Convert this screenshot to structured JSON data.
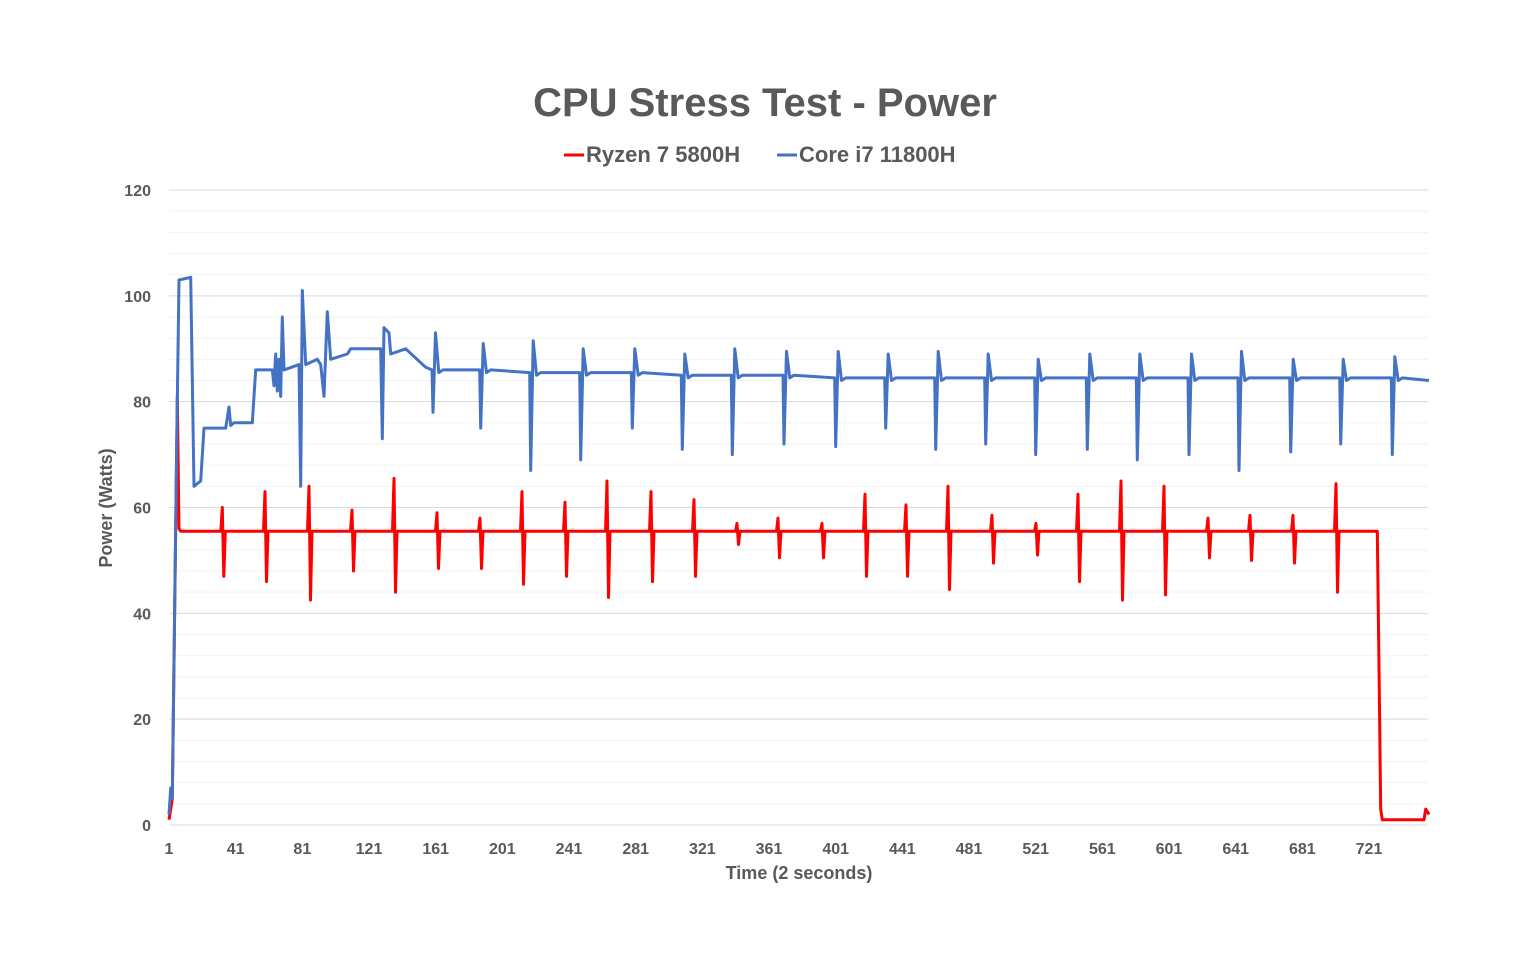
{
  "chart_data": {
    "type": "line",
    "title": "CPU Stress Test - Power",
    "xlabel": "Time (2 seconds)",
    "ylabel": "Power (Watts)",
    "xlim": [
      1,
      757
    ],
    "ylim": [
      0,
      120
    ],
    "x_ticks": [
      1,
      41,
      81,
      121,
      161,
      201,
      241,
      281,
      321,
      361,
      401,
      441,
      481,
      521,
      561,
      601,
      641,
      681,
      721
    ],
    "y_ticks": [
      0,
      20,
      40,
      60,
      80,
      100,
      120
    ],
    "grid": true,
    "legend_position": "top",
    "series": [
      {
        "name": "Ryzen 7 5800H",
        "color": "#ff0000",
        "spike_style": "up-then-down",
        "points": [
          [
            1,
            1
          ],
          [
            2,
            3
          ],
          [
            3,
            5
          ],
          [
            6,
            81
          ],
          [
            7,
            56
          ],
          [
            8,
            55.5
          ],
          [
            726,
            55.5
          ],
          [
            727,
            30
          ],
          [
            728,
            3
          ],
          [
            729,
            1
          ],
          [
            754,
            1
          ],
          [
            755,
            3
          ],
          [
            757,
            2
          ]
        ],
        "spikes": [
          {
            "x": 33,
            "base": 55.5,
            "high": 60,
            "low": 47
          },
          {
            "x": 58.6,
            "base": 55.5,
            "high": 63,
            "low": 46
          },
          {
            "x": 85,
            "base": 55.5,
            "high": 64,
            "low": 42.5
          },
          {
            "x": 110.8,
            "base": 55.5,
            "high": 59.5,
            "low": 48
          },
          {
            "x": 136,
            "base": 55.5,
            "high": 65.5,
            "low": 44
          },
          {
            "x": 161.8,
            "base": 55.5,
            "high": 59,
            "low": 48.5
          },
          {
            "x": 187.6,
            "base": 55.5,
            "high": 58,
            "low": 48.5
          },
          {
            "x": 212.8,
            "base": 55.5,
            "high": 63,
            "low": 45.5
          },
          {
            "x": 238.6,
            "base": 55.5,
            "high": 61,
            "low": 47
          },
          {
            "x": 263.8,
            "base": 55.5,
            "high": 65,
            "low": 43
          },
          {
            "x": 290.2,
            "base": 55.5,
            "high": 63,
            "low": 46
          },
          {
            "x": 316,
            "base": 55.5,
            "high": 61.5,
            "low": 47
          },
          {
            "x": 341.8,
            "base": 55.5,
            "high": 57,
            "low": 53
          },
          {
            "x": 366.4,
            "base": 55.5,
            "high": 58,
            "low": 50.5
          },
          {
            "x": 392.8,
            "base": 55.5,
            "high": 57,
            "low": 50.5
          },
          {
            "x": 418.6,
            "base": 55.5,
            "high": 62.5,
            "low": 47
          },
          {
            "x": 443.2,
            "base": 55.5,
            "high": 60.5,
            "low": 47
          },
          {
            "x": 468.4,
            "base": 55.5,
            "high": 64,
            "low": 44.5
          },
          {
            "x": 494.8,
            "base": 55.5,
            "high": 58.5,
            "low": 49.5
          },
          {
            "x": 521.2,
            "base": 55.5,
            "high": 57,
            "low": 51
          },
          {
            "x": 546.4,
            "base": 55.5,
            "high": 62.5,
            "low": 46
          },
          {
            "x": 572.2,
            "base": 55.5,
            "high": 65,
            "low": 42.5
          },
          {
            "x": 598,
            "base": 55.5,
            "high": 64,
            "low": 43.5
          },
          {
            "x": 624.4,
            "base": 55.5,
            "high": 58,
            "low": 50.5
          },
          {
            "x": 649.6,
            "base": 55.5,
            "high": 58.5,
            "low": 50
          },
          {
            "x": 675.4,
            "base": 55.5,
            "high": 58.5,
            "low": 49.5
          },
          {
            "x": 701.2,
            "base": 55.5,
            "high": 64.5,
            "low": 44
          }
        ]
      },
      {
        "name": "Core i7 11800H",
        "color": "#4472c4",
        "spike_style": "down-then-up",
        "points": [
          [
            1,
            2
          ],
          [
            2,
            7
          ],
          [
            3,
            5
          ],
          [
            6,
            80
          ],
          [
            7,
            103
          ],
          [
            14,
            103.5
          ],
          [
            16,
            64
          ],
          [
            20,
            65
          ],
          [
            22,
            75
          ],
          [
            35,
            75
          ],
          [
            37,
            79
          ],
          [
            38,
            75.5
          ],
          [
            40,
            76
          ],
          [
            51,
            76
          ],
          [
            53,
            86
          ],
          [
            63,
            86
          ],
          [
            64,
            83
          ],
          [
            65,
            89
          ],
          [
            66,
            82
          ],
          [
            67,
            88
          ],
          [
            68,
            81
          ],
          [
            69,
            96
          ],
          [
            70,
            86
          ],
          [
            79,
            87
          ],
          [
            80,
            64
          ],
          [
            81,
            101
          ],
          [
            83,
            87
          ],
          [
            90,
            88
          ],
          [
            92,
            87
          ],
          [
            94,
            81
          ],
          [
            96,
            97
          ],
          [
            98,
            88
          ],
          [
            108,
            89
          ],
          [
            110,
            90
          ],
          [
            128,
            90
          ],
          [
            129,
            73
          ],
          [
            130,
            94
          ],
          [
            133,
            93
          ],
          [
            134,
            89
          ],
          [
            143,
            90
          ],
          [
            155,
            86.5
          ],
          [
            757,
            84
          ]
        ],
        "spikes": [
          {
            "x": 159.4,
            "base": 86,
            "low": 78,
            "high": 93
          },
          {
            "x": 188,
            "base": 86,
            "low": 75,
            "high": 91
          },
          {
            "x": 218,
            "base": 85.5,
            "low": 67,
            "high": 91.5
          },
          {
            "x": 248,
            "base": 85.5,
            "low": 69,
            "high": 90
          },
          {
            "x": 279,
            "base": 85.5,
            "low": 75,
            "high": 90
          },
          {
            "x": 309,
            "base": 85,
            "low": 71,
            "high": 89
          },
          {
            "x": 339,
            "base": 85,
            "low": 70,
            "high": 90
          },
          {
            "x": 370,
            "base": 85,
            "low": 72,
            "high": 89.5
          },
          {
            "x": 401,
            "base": 84.5,
            "low": 71.5,
            "high": 89.5
          },
          {
            "x": 431,
            "base": 84.5,
            "low": 75,
            "high": 89
          },
          {
            "x": 461,
            "base": 84.5,
            "low": 71,
            "high": 89.5
          },
          {
            "x": 491,
            "base": 84.5,
            "low": 72,
            "high": 89
          },
          {
            "x": 521,
            "base": 84.5,
            "low": 70,
            "high": 88
          },
          {
            "x": 552,
            "base": 84.5,
            "low": 71,
            "high": 89
          },
          {
            "x": 582,
            "base": 84.5,
            "low": 69,
            "high": 89
          },
          {
            "x": 613,
            "base": 84.5,
            "low": 70,
            "high": 89
          },
          {
            "x": 643,
            "base": 84.5,
            "low": 67,
            "high": 89.5
          },
          {
            "x": 674,
            "base": 84.5,
            "low": 70.5,
            "high": 88
          },
          {
            "x": 704,
            "base": 84.5,
            "low": 72,
            "high": 88
          },
          {
            "x": 735,
            "base": 84.5,
            "low": 70,
            "high": 88.5
          }
        ]
      }
    ]
  }
}
